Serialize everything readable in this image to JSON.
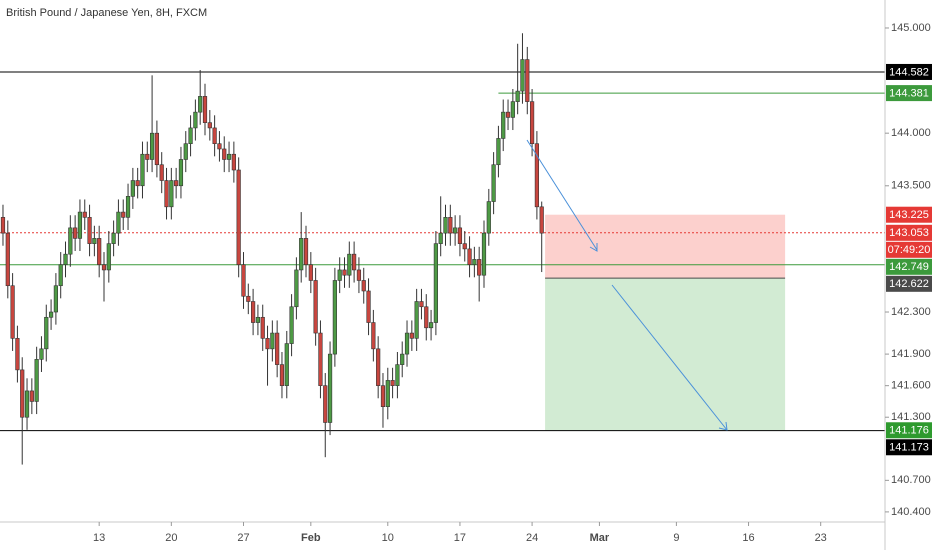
{
  "chart_data": {
    "type": "candlestick",
    "title": "British Pound / Japanese Yen, 8H, FXCM",
    "up_color": "#4e9a45",
    "down_color": "#c8463f",
    "xlim": [
      -0.62,
      183.37
    ],
    "ylim": [
      140.304,
      145.266
    ],
    "xticks": [
      {
        "value": 20,
        "label": "13"
      },
      {
        "value": 35,
        "label": "20"
      },
      {
        "value": 50,
        "label": "27"
      },
      {
        "value": 64,
        "label": "Feb"
      },
      {
        "value": 80,
        "label": "10"
      },
      {
        "value": 95,
        "label": "17"
      },
      {
        "value": 110,
        "label": "24"
      },
      {
        "value": 124,
        "label": "Mar"
      },
      {
        "value": 140,
        "label": "9"
      },
      {
        "value": 155,
        "label": "16"
      },
      {
        "value": 170,
        "label": "23"
      }
    ],
    "yticks": [
      {
        "value": 145,
        "label": "145.000"
      },
      {
        "value": 144,
        "label": "144.000"
      },
      {
        "value": 143.5,
        "label": "143.500"
      },
      {
        "value": 142.3,
        "label": "142.300"
      },
      {
        "value": 141.9,
        "label": "141.900"
      },
      {
        "value": 141.6,
        "label": "141.600"
      },
      {
        "value": 141.3,
        "label": "141.300"
      },
      {
        "value": 140.7,
        "label": "140.700"
      },
      {
        "value": 140.4,
        "label": "140.400"
      }
    ],
    "open": [
      143.2,
      143.05,
      142.55,
      142.05,
      141.75,
      141.3,
      141.55,
      141.45,
      141.85,
      141.95,
      142.25,
      142.3,
      142.55,
      142.75,
      142.85,
      143.1,
      143.0,
      143.25,
      143.2,
      142.95,
      143.0,
      142.75,
      142.7,
      142.95,
      143.05,
      143.25,
      143.2,
      143.4,
      143.55,
      143.5,
      143.8,
      143.75,
      144.0,
      143.7,
      143.55,
      143.3,
      143.55,
      143.5,
      143.75,
      143.9,
      144.05,
      144.2,
      144.35,
      144.1,
      144.05,
      143.9,
      143.85,
      143.75,
      143.8,
      143.65,
      142.75,
      142.45,
      142.4,
      142.2,
      142.25,
      142.05,
      141.95,
      142.1,
      141.8,
      141.6,
      142.0,
      142.35,
      142.7,
      143.0,
      142.75,
      142.6,
      142.1,
      141.6,
      141.25,
      141.9,
      142.6,
      142.7,
      142.65,
      142.85,
      142.7,
      142.6,
      142.5,
      142.2,
      141.95,
      141.6,
      141.4,
      141.65,
      141.6,
      141.8,
      141.9,
      142.1,
      142.05,
      142.4,
      142.35,
      142.15,
      142.2,
      142.95,
      143.05,
      143.2,
      143.05,
      143.1,
      142.95,
      142.9,
      142.75,
      142.8,
      142.65,
      143.05,
      143.35,
      143.7,
      143.95,
      144.2,
      144.15,
      144.3,
      144.4,
      144.7,
      144.3,
      143.9,
      143.3
    ],
    "high": [
      143.32,
      143.17,
      142.67,
      142.17,
      141.87,
      141.67,
      141.67,
      141.97,
      142.07,
      142.37,
      142.42,
      142.67,
      142.87,
      142.97,
      143.22,
      143.22,
      143.37,
      143.37,
      143.32,
      143.12,
      143.12,
      142.87,
      143.07,
      143.17,
      143.37,
      143.37,
      143.52,
      143.67,
      143.67,
      143.92,
      143.92,
      144.55,
      144.12,
      143.82,
      143.67,
      143.67,
      143.67,
      143.87,
      144.02,
      144.17,
      144.32,
      144.6,
      144.47,
      144.22,
      144.17,
      144.02,
      143.97,
      143.92,
      143.92,
      143.77,
      142.87,
      142.57,
      142.52,
      142.37,
      142.37,
      142.17,
      142.22,
      142.22,
      141.92,
      142.12,
      142.47,
      142.82,
      143.25,
      143.12,
      142.87,
      142.72,
      142.22,
      141.72,
      142.02,
      142.72,
      142.82,
      142.82,
      142.97,
      142.97,
      142.82,
      142.72,
      142.62,
      142.32,
      142.07,
      141.72,
      141.77,
      141.77,
      141.92,
      142.02,
      142.22,
      142.22,
      142.52,
      142.52,
      142.47,
      142.32,
      143.07,
      143.4,
      143.32,
      143.32,
      143.22,
      143.22,
      143.07,
      143.02,
      142.92,
      142.92,
      143.17,
      143.47,
      143.82,
      144.07,
      144.32,
      144.32,
      144.42,
      144.85,
      144.95,
      144.82,
      144.42,
      144.02,
      143.35
    ],
    "low": [
      142.93,
      142.43,
      141.93,
      141.63,
      140.85,
      141.18,
      141.33,
      141.33,
      141.73,
      141.83,
      142.13,
      142.18,
      142.43,
      142.63,
      142.73,
      142.88,
      142.88,
      143.08,
      142.83,
      142.83,
      142.63,
      142.4,
      142.58,
      142.83,
      142.93,
      143.08,
      143.08,
      143.28,
      143.38,
      143.38,
      143.63,
      143.63,
      143.58,
      143.43,
      143.18,
      143.18,
      143.38,
      143.38,
      143.63,
      143.78,
      143.93,
      144.08,
      143.98,
      143.93,
      143.78,
      143.73,
      143.63,
      143.63,
      143.53,
      142.63,
      142.33,
      142.28,
      142.08,
      142.08,
      141.93,
      141.6,
      141.83,
      141.68,
      141.48,
      141.48,
      141.88,
      142.23,
      142.58,
      142.63,
      142.48,
      141.98,
      141.48,
      140.92,
      141.13,
      141.78,
      142.48,
      142.53,
      142.53,
      142.58,
      142.48,
      142.38,
      142.08,
      141.83,
      141.48,
      141.2,
      141.28,
      141.48,
      141.48,
      141.68,
      141.78,
      141.93,
      141.93,
      142.23,
      142.03,
      142.03,
      142.08,
      142.83,
      142.93,
      142.93,
      142.93,
      142.83,
      142.78,
      142.63,
      142.63,
      142.4,
      142.53,
      142.93,
      143.23,
      143.58,
      143.83,
      144.03,
      144.03,
      144.18,
      144.28,
      144.18,
      143.78,
      143.18,
      142.68
    ],
    "close": [
      143.05,
      142.55,
      142.05,
      141.75,
      141.3,
      141.55,
      141.45,
      141.85,
      141.95,
      142.25,
      142.3,
      142.55,
      142.75,
      142.85,
      143.1,
      143.0,
      143.25,
      143.2,
      142.95,
      143.0,
      142.75,
      142.7,
      142.95,
      143.05,
      143.25,
      143.2,
      143.4,
      143.55,
      143.5,
      143.8,
      143.75,
      144.0,
      143.7,
      143.55,
      143.3,
      143.55,
      143.5,
      143.75,
      143.9,
      144.05,
      144.2,
      144.35,
      144.1,
      144.05,
      143.9,
      143.85,
      143.75,
      143.8,
      143.65,
      142.75,
      142.45,
      142.4,
      142.2,
      142.25,
      142.05,
      141.95,
      142.1,
      141.8,
      141.6,
      142.0,
      142.35,
      142.7,
      143.0,
      142.75,
      142.6,
      142.1,
      141.6,
      141.25,
      141.9,
      142.6,
      142.7,
      142.65,
      142.85,
      142.7,
      142.6,
      142.5,
      142.2,
      141.95,
      141.6,
      141.4,
      141.65,
      141.6,
      141.8,
      141.9,
      142.1,
      142.05,
      142.4,
      142.35,
      142.15,
      142.2,
      142.95,
      143.05,
      143.2,
      143.05,
      143.1,
      142.95,
      142.9,
      142.75,
      142.8,
      142.65,
      143.05,
      143.35,
      143.7,
      143.95,
      144.2,
      144.15,
      144.3,
      144.4,
      144.7,
      144.3,
      143.9,
      143.3,
      143.05
    ],
    "levels": [
      {
        "value": 144.582,
        "color": "#000000",
        "style": "solid"
      },
      {
        "value": 144.381,
        "color": "#3c9a3c",
        "style": "solid",
        "x_start": 103
      },
      {
        "value": 143.053,
        "color": "#e53935",
        "style": "dotted",
        "countdown": "07:49:20"
      },
      {
        "value": 142.749,
        "color": "#3c9a3c",
        "style": "solid"
      },
      {
        "value": 141.173,
        "color": "#000000",
        "style": "solid"
      }
    ],
    "position": {
      "stop": 143.225,
      "entry": 142.622,
      "target": 141.176,
      "x_start": 112.7,
      "x_end": 162.6,
      "stop_color": "#e53935",
      "entry_color": "#4a4a4a",
      "target_color": "#2e9a2e"
    }
  }
}
